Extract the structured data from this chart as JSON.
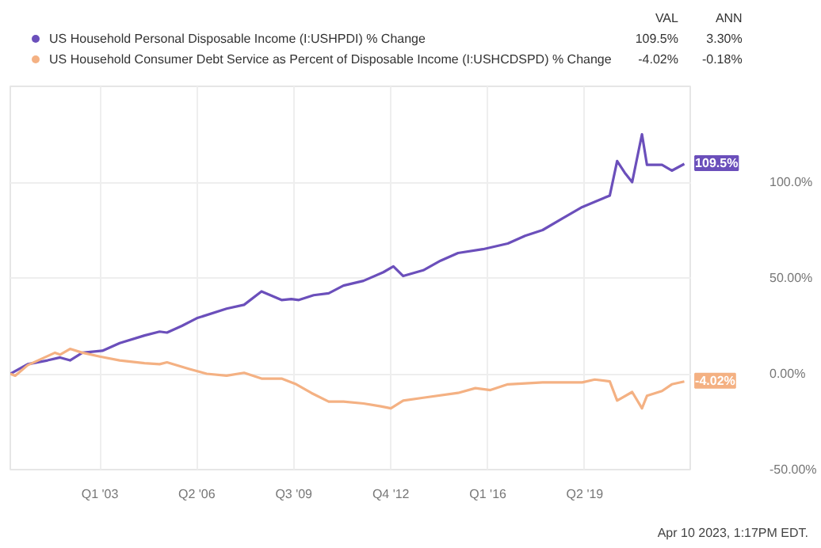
{
  "chart_data": {
    "type": "line",
    "legend": "top left",
    "grid": true,
    "marker": "none",
    "line_style": "solid",
    "xlim": [
      "2000-01",
      "2022-11"
    ],
    "xticks": [
      {
        "value": "2003-01-01",
        "label": "Q1 '03"
      },
      {
        "value": "2006-04-01",
        "label": "Q2 '06"
      },
      {
        "value": "2009-07-01",
        "label": "Q3 '09"
      },
      {
        "value": "2012-10-01",
        "label": "Q4 '12"
      },
      {
        "value": "2016-01-01",
        "label": "Q1 '16"
      },
      {
        "value": "2019-04-01",
        "label": "Q2 '19"
      }
    ],
    "ylim": [
      -50,
      150
    ],
    "yticks": [
      {
        "value": -50,
        "label": "-50.00%"
      },
      {
        "value": 0,
        "label": "0.00%"
      },
      {
        "value": 50,
        "label": "50.00%"
      },
      {
        "value": 100,
        "label": "100.0%"
      }
    ],
    "series": [
      {
        "name": "US Household Personal Disposable Income (I:USHPDI) % Change",
        "color": "#6b4fbb",
        "x": [
          "2000-01",
          "2000-08",
          "2001-04",
          "2001-09",
          "2002-01",
          "2002-06",
          "2003-02",
          "2003-09",
          "2004-07",
          "2005-01",
          "2005-04",
          "2005-10",
          "2006-04",
          "2007-04",
          "2007-11",
          "2008-06",
          "2009-02",
          "2009-06",
          "2009-09",
          "2010-03",
          "2010-09",
          "2011-03",
          "2011-11",
          "2012-07",
          "2012-11",
          "2013-03",
          "2013-11",
          "2014-06",
          "2015-01",
          "2015-11",
          "2016-09",
          "2017-04",
          "2017-11",
          "2018-07",
          "2019-03",
          "2020-02",
          "2020-05",
          "2020-08",
          "2020-11",
          "2021-03",
          "2021-05",
          "2021-11",
          "2022-03",
          "2022-08"
        ],
        "values": [
          0,
          5,
          7,
          8.5,
          7,
          11,
          12,
          16,
          20,
          22,
          21.5,
          25,
          29,
          34,
          36,
          43,
          38.5,
          39,
          38.5,
          41,
          42,
          46,
          48.5,
          53,
          56,
          51,
          54,
          59,
          63,
          65,
          68,
          72,
          75,
          81,
          87,
          93,
          111,
          105,
          100,
          125,
          109,
          109,
          106,
          109.5
        ]
      },
      {
        "name": "US Household Consumer Debt Service as Percent of Disposable Income (I:USHCDSPD) % Change",
        "color": "#f4b183",
        "x": [
          "2000-01",
          "2000-03",
          "2000-08",
          "2001-07",
          "2001-09",
          "2002-01",
          "2002-06",
          "2003-01",
          "2003-09",
          "2004-07",
          "2005-01",
          "2005-04",
          "2006-01",
          "2006-08",
          "2007-04",
          "2007-11",
          "2008-06",
          "2009-02",
          "2009-08",
          "2010-02",
          "2010-09",
          "2011-03",
          "2011-11",
          "2012-06",
          "2012-10",
          "2013-03",
          "2013-11",
          "2015-01",
          "2015-08",
          "2016-02",
          "2016-09",
          "2017-11",
          "2019-03",
          "2019-08",
          "2020-02",
          "2020-05",
          "2020-11",
          "2021-03",
          "2021-05",
          "2021-11",
          "2022-03",
          "2022-08"
        ],
        "values": [
          0,
          -1,
          4.5,
          11,
          10,
          13,
          11,
          9,
          7,
          5.5,
          5,
          6,
          2.5,
          0,
          -1,
          0.5,
          -2.5,
          -2.5,
          -5.5,
          -10,
          -14.5,
          -14.5,
          -15.5,
          -17,
          -18,
          -14,
          -12.5,
          -10,
          -7.5,
          -8.5,
          -5.5,
          -4.5,
          -4.5,
          -3,
          -4,
          -14,
          -9.5,
          -18,
          -11.5,
          -9,
          -5.5,
          -4.02
        ]
      }
    ],
    "annotations": [
      "VAL",
      "ANN",
      "109.5%",
      "3.30%",
      "-4.02%",
      "-0.18%",
      "Apr 10 2023, 1:17PM EDT.",
      {
        "text": "109.5%",
        "x": "2022-08",
        "y": 109.5
      },
      {
        "text": "-4.02%",
        "x": "2022-08",
        "y": -4.02
      }
    ]
  }
}
